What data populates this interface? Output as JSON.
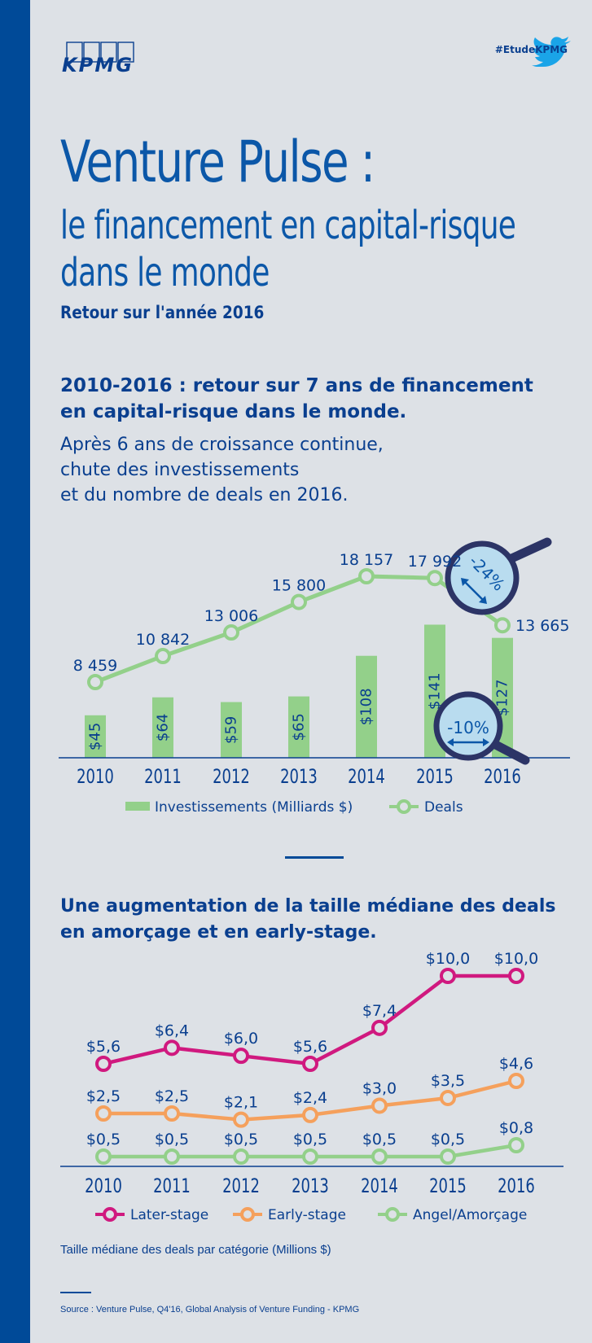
{
  "header": {
    "logo_text": "KPMG",
    "hashtag": "#EtudeKPMG"
  },
  "title": {
    "main": "Venture Pulse :",
    "sub_line1": "le financement en capital-risque",
    "sub_line2": "dans le monde",
    "year_review": "Retour sur l'année 2016"
  },
  "section1": {
    "heading_line1": "2010-2016 : retour sur 7 ans de financement",
    "heading_line2": "en capital-risque dans le monde.",
    "text_line1": "Après 6 ans de croissance continue,",
    "text_line2": "chute des investissements",
    "text_line3": "et du nombre de deals en 2016.",
    "mag_deals": "-24%",
    "mag_invest": "-10%"
  },
  "section2": {
    "heading_line1": "Une augmentation de la taille médiane des deals",
    "heading_line2": "en amorçage et en early-stage.",
    "caption": "Taille médiane des deals par catégorie (Millions $)"
  },
  "footer": {
    "source": "Source : Venture Pulse, Q4'16, Global Analysis of Venture Funding - KPMG"
  },
  "colors": {
    "brand_blue": "#004a98",
    "text_blue": "#0a3f8f",
    "green": "#93d08a",
    "magenta": "#d0197f",
    "orange": "#f5a05c",
    "magnifier": "#2c3466"
  },
  "chart_data": [
    {
      "type": "bar",
      "categories": [
        "2010",
        "2011",
        "2012",
        "2013",
        "2014",
        "2015",
        "2016"
      ],
      "series": [
        {
          "name": "Investissements (Milliards $)",
          "type": "bar",
          "values": [
            45,
            64,
            59,
            65,
            108,
            141,
            127
          ],
          "labels": [
            "$45",
            "$64",
            "$59",
            "$65",
            "$108",
            "$141",
            "$127"
          ]
        },
        {
          "name": "Deals",
          "type": "line",
          "values": [
            8459,
            10842,
            13006,
            15800,
            18157,
            17992,
            13665
          ],
          "labels": [
            "8 459",
            "10 842",
            "13 006",
            "15 800",
            "18 157",
            "17 992",
            "13 665"
          ]
        }
      ],
      "legend": "bottom"
    },
    {
      "type": "line",
      "categories": [
        "2010",
        "2011",
        "2012",
        "2013",
        "2014",
        "2015",
        "2016"
      ],
      "series": [
        {
          "name": "Later-stage",
          "values": [
            5.6,
            6.4,
            6.0,
            5.6,
            7.4,
            10.0,
            10.0
          ],
          "labels": [
            "$5,6",
            "$6,4",
            "$6,0",
            "$5,6",
            "$7,4",
            "$10,0",
            "$10,0"
          ]
        },
        {
          "name": "Early-stage",
          "values": [
            2.5,
            2.5,
            2.1,
            2.4,
            3.0,
            3.5,
            4.6
          ],
          "labels": [
            "$2,5",
            "$2,5",
            "$2,1",
            "$2,4",
            "$3,0",
            "$3,5",
            "$4,6"
          ]
        },
        {
          "name": "Angel/Amorçage",
          "values": [
            0.5,
            0.5,
            0.5,
            0.5,
            0.5,
            0.5,
            0.8
          ],
          "labels": [
            "$0,5",
            "$0,5",
            "$0,5",
            "$0,5",
            "$0,5",
            "$0,5",
            "$0,8"
          ]
        }
      ],
      "legend": "bottom"
    }
  ]
}
